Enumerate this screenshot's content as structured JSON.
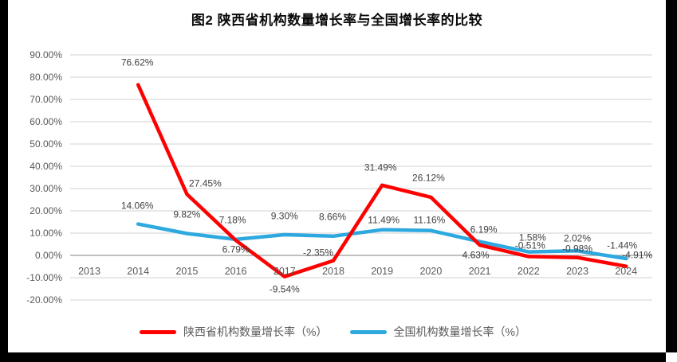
{
  "chart_data": {
    "type": "line",
    "title": "图2 陕西省机构数量增长率与全国增长率的比较",
    "x_categories": [
      "2013",
      "2014",
      "2015",
      "2016",
      "2017",
      "2018",
      "2019",
      "2020",
      "2021",
      "2022",
      "2023",
      "2024"
    ],
    "series": [
      {
        "name": "陕西省机构数量增长率（%）",
        "color": "#FE0000",
        "values": [
          null,
          76.62,
          27.45,
          6.79,
          -9.54,
          -2.35,
          31.49,
          26.12,
          4.63,
          -0.51,
          -0.98,
          -4.91
        ],
        "point_labels": [
          "",
          "76.62%",
          "27.45%",
          "6.79%",
          "-9.54%",
          "-2.35%",
          "31.49%",
          "26.12%",
          "4.63%",
          "-0.51%",
          "-0.98%",
          "-4.91%"
        ]
      },
      {
        "name": "全国机构数量增长率（%）",
        "color": "#2DA9E0",
        "values": [
          null,
          14.06,
          9.82,
          7.18,
          9.3,
          8.66,
          11.49,
          11.16,
          6.19,
          1.58,
          2.02,
          -1.44
        ],
        "point_labels": [
          "",
          "14.06%",
          "9.82%",
          "7.18%",
          "9.30%",
          "8.66%",
          "11.49%",
          "11.16%",
          "6.19%",
          "1.58%",
          "2.02%",
          "-1.44%"
        ]
      }
    ],
    "y_axis": {
      "min": -20,
      "max": 90,
      "step": 10,
      "tick_labels": [
        "90.00%",
        "80.00%",
        "70.00%",
        "60.00%",
        "50.00%",
        "40.00%",
        "30.00%",
        "20.00%",
        "10.00%",
        "0.00%",
        "-10.00%",
        "-20.00%"
      ]
    },
    "grid": true,
    "legend_position": "bottom",
    "colors": {
      "gridline": "#D9D9D9",
      "axis_line": "#ABABAB",
      "tick_text": "#595959",
      "data_label_text": "#404040",
      "leader_line": "#A6A6A6"
    }
  }
}
